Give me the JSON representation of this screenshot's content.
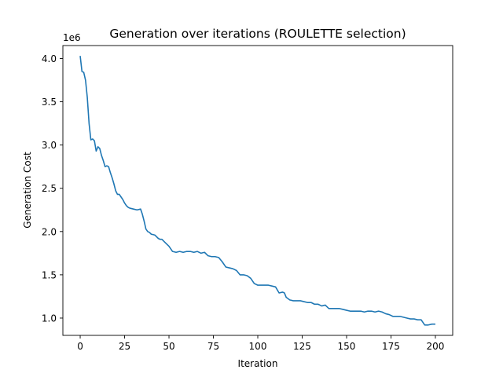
{
  "chart_data": {
    "type": "line",
    "title": "Generation over iterations (ROULETTE selection)",
    "xlabel": "Iteration",
    "ylabel": "Generation Cost",
    "y_offset_label": "1e6",
    "xlim": [
      -9.75,
      209.75
    ],
    "ylim": [
      0.8,
      4.15
    ],
    "y_scale_multiplier": 1000000,
    "x_ticks": [
      0,
      25,
      50,
      75,
      100,
      125,
      150,
      175,
      200
    ],
    "x_tick_labels": [
      "0",
      "25",
      "50",
      "75",
      "100",
      "125",
      "150",
      "175",
      "200"
    ],
    "y_ticks": [
      1.0,
      1.5,
      2.0,
      2.5,
      3.0,
      3.5,
      4.0
    ],
    "y_tick_labels": [
      "1.0",
      "1.5",
      "2.0",
      "2.5",
      "3.0",
      "3.5",
      "4.0"
    ],
    "grid": false,
    "line_color": "#1f77b4",
    "series": [
      {
        "name": "",
        "x": [
          0,
          1,
          2,
          3,
          4,
          5,
          6,
          7,
          8,
          9,
          10,
          11,
          12,
          13,
          14,
          15,
          16,
          17,
          18,
          19,
          20,
          21,
          22,
          23,
          24,
          25,
          26,
          27,
          28,
          30,
          32,
          34,
          35,
          36,
          37,
          38,
          39,
          40,
          42,
          44,
          45,
          46,
          48,
          50,
          52,
          54,
          56,
          58,
          60,
          62,
          64,
          66,
          68,
          70,
          72,
          74,
          76,
          78,
          80,
          82,
          84,
          86,
          88,
          90,
          92,
          94,
          96,
          98,
          100,
          102,
          104,
          106,
          108,
          110,
          112,
          114,
          115,
          116,
          118,
          120,
          122,
          124,
          126,
          128,
          130,
          132,
          134,
          136,
          138,
          140,
          142,
          144,
          146,
          148,
          150,
          152,
          154,
          156,
          158,
          160,
          162,
          164,
          166,
          168,
          170,
          172,
          174,
          176,
          178,
          180,
          182,
          184,
          186,
          188,
          190,
          192,
          194,
          196,
          198,
          200
        ],
        "values": [
          4.03,
          3.85,
          3.84,
          3.75,
          3.55,
          3.25,
          3.06,
          3.07,
          3.05,
          2.93,
          2.98,
          2.96,
          2.88,
          2.82,
          2.75,
          2.76,
          2.75,
          2.68,
          2.62,
          2.55,
          2.47,
          2.43,
          2.43,
          2.4,
          2.37,
          2.33,
          2.3,
          2.28,
          2.27,
          2.26,
          2.25,
          2.26,
          2.2,
          2.12,
          2.03,
          2.0,
          1.99,
          1.97,
          1.96,
          1.92,
          1.91,
          1.91,
          1.87,
          1.83,
          1.77,
          1.76,
          1.77,
          1.76,
          1.77,
          1.77,
          1.76,
          1.77,
          1.75,
          1.76,
          1.72,
          1.71,
          1.71,
          1.7,
          1.65,
          1.59,
          1.58,
          1.57,
          1.55,
          1.5,
          1.5,
          1.49,
          1.46,
          1.4,
          1.38,
          1.38,
          1.38,
          1.38,
          1.37,
          1.36,
          1.29,
          1.3,
          1.29,
          1.24,
          1.21,
          1.2,
          1.2,
          1.2,
          1.19,
          1.18,
          1.18,
          1.16,
          1.16,
          1.14,
          1.15,
          1.11,
          1.11,
          1.11,
          1.11,
          1.1,
          1.09,
          1.08,
          1.08,
          1.08,
          1.08,
          1.07,
          1.08,
          1.08,
          1.07,
          1.08,
          1.07,
          1.05,
          1.04,
          1.02,
          1.02,
          1.02,
          1.01,
          1.0,
          0.99,
          0.99,
          0.98,
          0.98,
          0.92,
          0.92,
          0.93,
          0.93
        ]
      }
    ]
  }
}
